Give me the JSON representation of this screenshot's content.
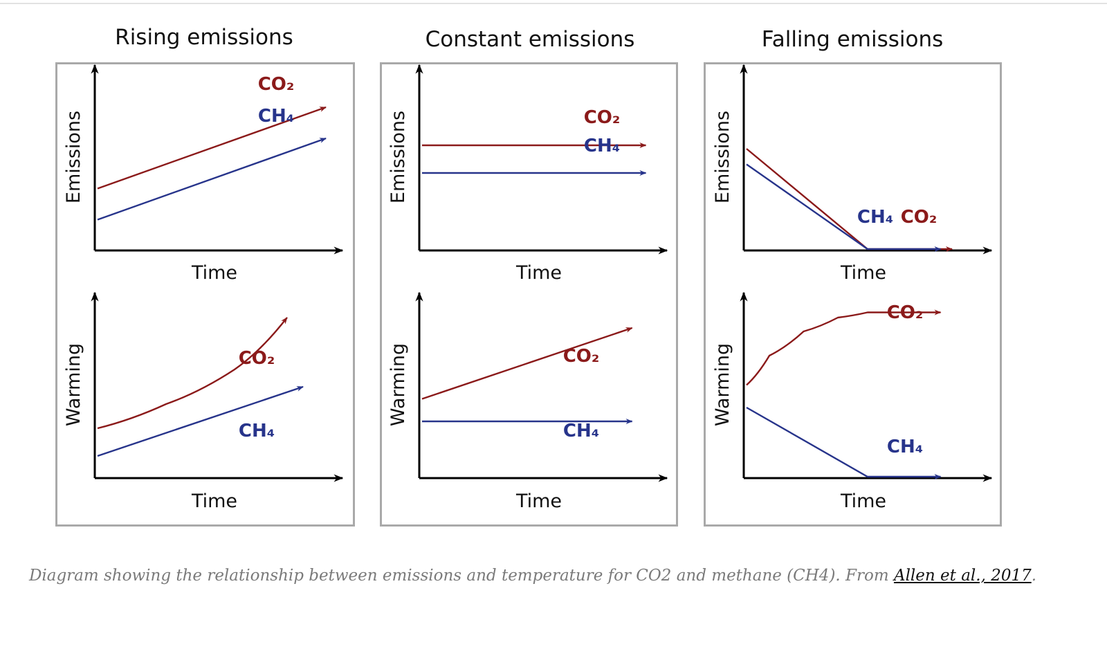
{
  "colors": {
    "co2": "#8b1a1a",
    "ch4": "#27348b",
    "axis": "#000000",
    "frame": "#a9a9a9"
  },
  "panels": [
    {
      "title": "Rising emissions",
      "emissions": {
        "ylabel": "Emissions",
        "xlabel": "Time",
        "series": [
          {
            "name": "CO₂",
            "key": "co2",
            "points": [
              [
                0,
                0.35
              ],
              [
                1,
                0.82
              ]
            ]
          },
          {
            "name": "CH₄",
            "key": "ch4",
            "points": [
              [
                0,
                0.17
              ],
              [
                1,
                0.64
              ]
            ]
          }
        ]
      },
      "warming": {
        "ylabel": "Warming",
        "xlabel": "Time",
        "series": [
          {
            "name": "CO₂",
            "key": "co2",
            "points": [
              [
                0,
                0.28
              ],
              [
                0.3,
                0.42
              ],
              [
                0.6,
                0.62
              ],
              [
                0.83,
                0.92
              ]
            ]
          },
          {
            "name": "CH₄",
            "key": "ch4",
            "points": [
              [
                0,
                0.12
              ],
              [
                0.9,
                0.52
              ]
            ]
          }
        ]
      }
    },
    {
      "title": "Constant emissions",
      "emissions": {
        "ylabel": "Emissions",
        "xlabel": "Time",
        "series": [
          {
            "name": "CO₂",
            "key": "co2",
            "points": [
              [
                0,
                0.6
              ],
              [
                0.98,
                0.6
              ]
            ]
          },
          {
            "name": "CH₄",
            "key": "ch4",
            "points": [
              [
                0,
                0.44
              ],
              [
                0.98,
                0.44
              ]
            ]
          }
        ]
      },
      "warming": {
        "ylabel": "Warming",
        "xlabel": "Time",
        "series": [
          {
            "name": "CO₂",
            "key": "co2",
            "points": [
              [
                0,
                0.45
              ],
              [
                0.92,
                0.86
              ]
            ]
          },
          {
            "name": "CH₄",
            "key": "ch4",
            "points": [
              [
                0,
                0.32
              ],
              [
                0.92,
                0.32
              ]
            ]
          }
        ]
      }
    },
    {
      "title": "Falling emissions",
      "emissions": {
        "ylabel": "Emissions",
        "xlabel": "Time",
        "series": [
          {
            "name": "CO₂",
            "key": "co2",
            "points": [
              [
                0,
                0.58
              ],
              [
                0.53,
                0
              ],
              [
                0.9,
                0
              ]
            ]
          },
          {
            "name": "CH₄",
            "key": "ch4",
            "points": [
              [
                0,
                0.49
              ],
              [
                0.53,
                0
              ],
              [
                0.85,
                0
              ]
            ]
          }
        ]
      },
      "warming": {
        "ylabel": "Warming",
        "xlabel": "Time",
        "series": [
          {
            "name": "CO₂",
            "key": "co2",
            "points": [
              [
                0,
                0.53
              ],
              [
                0.1,
                0.7
              ],
              [
                0.25,
                0.84
              ],
              [
                0.4,
                0.92
              ],
              [
                0.53,
                0.95
              ],
              [
                0.85,
                0.95
              ]
            ]
          },
          {
            "name": "CH₄",
            "key": "ch4",
            "points": [
              [
                0,
                0.4
              ],
              [
                0.53,
                0
              ],
              [
                0.85,
                0
              ]
            ]
          }
        ]
      }
    }
  ],
  "caption": {
    "text": "Diagram showing the relationship between emissions and temperature for CO2 and methane (CH4). From ",
    "link": "Allen et al., 2017",
    "end": "."
  }
}
